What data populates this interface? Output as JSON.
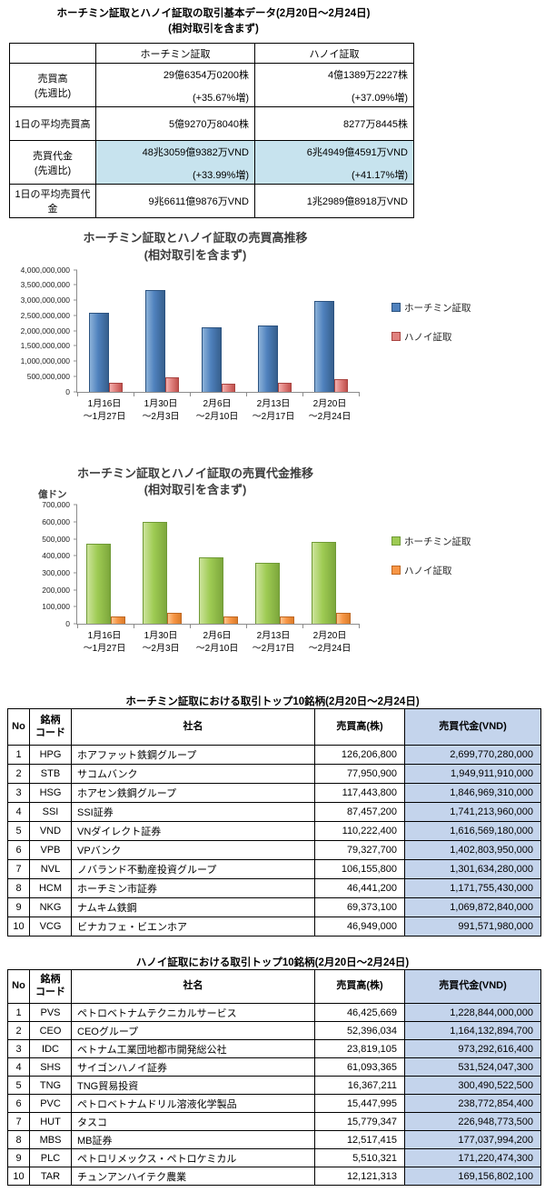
{
  "page": {
    "title": "ホーチミン証取とハノイ証取の取引基本データ(2月20日～2月24日)",
    "subtitle": "(相対取引を含まず)"
  },
  "colors": {
    "summary_highlight": "#c7e3ee",
    "column_highlight": "#c4d4ec",
    "hcm_blue": "#4f81bd",
    "hanoi_pink": "#e0817e",
    "hcm_green": "#9ecb53",
    "hanoi_orange": "#f79646"
  },
  "summary_table": {
    "col_headers": [
      "ホーチミン証取",
      "ハノイ証取"
    ],
    "rows": [
      {
        "label1": "売買高",
        "label2": "(先週比)",
        "hcm": "29億6354万0200株",
        "hcm_sub": "(+35.67%増)",
        "hanoi": "4億1389万2227株",
        "hanoi_sub": "(+37.09%増)"
      },
      {
        "label1": "1日の平均売買高",
        "label2": "",
        "hcm": "5億9270万8040株",
        "hanoi": "8277万8445株"
      },
      {
        "label1": "売買代金",
        "label2": "(先週比)",
        "hcm": "48兆3059億9382万VND",
        "hcm_sub": "(+33.99%増)",
        "hanoi": "6兆4949億4591万VND",
        "hanoi_sub": "(+41.17%増)"
      },
      {
        "label1": "1日の平均売買代金",
        "label2": "",
        "hcm": "9兆6611億9876万VND",
        "hanoi": "1兆2989億8918万VND"
      }
    ]
  },
  "chart_data": [
    {
      "type": "bar",
      "title": "ホーチミン証取とハノイ証取の売買高推移",
      "subtitle": "(相対取引を含まず)",
      "xlabel": "",
      "ylabel": "",
      "ylim": [
        0,
        4000000000
      ],
      "ytick": 500000000,
      "grid": false,
      "legend_position": "right",
      "categories": [
        [
          "1月16日",
          "～1月27日"
        ],
        [
          "1月30日",
          "～2月3日"
        ],
        [
          "2月6日",
          "～2月10日"
        ],
        [
          "2月13日",
          "～2月17日"
        ],
        [
          "2月20日",
          "～2月24日"
        ]
      ],
      "series": [
        {
          "name": "ホーチミン証取",
          "color": "#4f81bd",
          "color_light": "#8cb2d9",
          "color_dark": "#365f8d",
          "border": "#2c5380",
          "values": [
            2575000000,
            3330000000,
            2120000000,
            2184000000,
            2963540200
          ]
        },
        {
          "name": "ハノイ証取",
          "color": "#e0817e",
          "color_light": "#f3b0ae",
          "color_dark": "#c0504d",
          "border": "#a94441",
          "values": [
            300000000,
            465000000,
            270000000,
            302000000,
            413892227
          ]
        }
      ]
    },
    {
      "type": "bar",
      "title": "ホーチミン証取とハノイ証取の売買代金推移",
      "subtitle": "(相対取引を含まず)",
      "xlabel": "",
      "ylabel": "億ドン",
      "ylim": [
        0,
        700000
      ],
      "ytick": 100000,
      "grid": false,
      "legend_position": "right",
      "categories": [
        [
          "1月16日",
          "～1月27日"
        ],
        [
          "1月30日",
          "～2月3日"
        ],
        [
          "2月6日",
          "～2月10日"
        ],
        [
          "2月13日",
          "～2月17日"
        ],
        [
          "2月20日",
          "～2月24日"
        ]
      ],
      "series": [
        {
          "name": "ホーチミン証取",
          "color": "#9ecb53",
          "color_light": "#cce39b",
          "color_dark": "#7da73c",
          "border": "#6f9a36",
          "values": [
            473000,
            597000,
            388000,
            360500,
            483060
          ]
        },
        {
          "name": "ハノイ証取",
          "color": "#f79646",
          "color_light": "#fcc690",
          "color_dark": "#db7c2a",
          "border": "#bf6721",
          "values": [
            45000,
            66000,
            42000,
            46000,
            64949
          ]
        }
      ]
    }
  ],
  "hcm_top10": {
    "caption": "ホーチミン証取における取引トップ10銘柄(2月20日～2月24日)",
    "headers": {
      "no": "No",
      "code1": "銘柄",
      "code2": "コード",
      "name": "社名",
      "volume": "売買高(株)",
      "value": "売買代金(VND)"
    },
    "rows": [
      {
        "no": "1",
        "code": "HPG",
        "name": "ホアファット鉄鋼グループ",
        "volume": "126,206,800",
        "value": "2,699,770,280,000"
      },
      {
        "no": "2",
        "code": "STB",
        "name": "サコムバンク",
        "volume": "77,950,900",
        "value": "1,949,911,910,000"
      },
      {
        "no": "3",
        "code": "HSG",
        "name": "ホアセン鉄鋼グループ",
        "volume": "117,443,800",
        "value": "1,846,969,310,000"
      },
      {
        "no": "4",
        "code": "SSI",
        "name": "SSI証券",
        "volume": "87,457,200",
        "value": "1,741,213,960,000"
      },
      {
        "no": "5",
        "code": "VND",
        "name": "VNダイレクト証券",
        "volume": "110,222,400",
        "value": "1,616,569,180,000"
      },
      {
        "no": "6",
        "code": "VPB",
        "name": "VPバンク",
        "volume": "79,327,700",
        "value": "1,402,803,950,000"
      },
      {
        "no": "7",
        "code": "NVL",
        "name": "ノバランド不動産投資グループ",
        "volume": "106,155,800",
        "value": "1,301,634,280,000"
      },
      {
        "no": "8",
        "code": "HCM",
        "name": "ホーチミン市証券",
        "volume": "46,441,200",
        "value": "1,171,755,430,000"
      },
      {
        "no": "9",
        "code": "NKG",
        "name": "ナムキム鉄鋼",
        "volume": "69,373,100",
        "value": "1,069,872,840,000"
      },
      {
        "no": "10",
        "code": "VCG",
        "name": "ビナカフェ・ビエンホア",
        "volume": "46,949,000",
        "value": "991,571,980,000"
      }
    ]
  },
  "hanoi_top10": {
    "caption": "ハノイ証取における取引トップ10銘柄(2月20日～2月24日)",
    "headers": {
      "no": "No",
      "code1": "銘柄",
      "code2": "コード",
      "name": "社名",
      "volume": "売買高(株)",
      "value": "売買代金(VND)"
    },
    "rows": [
      {
        "no": "1",
        "code": "PVS",
        "name": "ペトロベトナムテクニカルサービス",
        "volume": "46,425,669",
        "value": "1,228,844,000,000"
      },
      {
        "no": "2",
        "code": "CEO",
        "name": "CEOグループ",
        "volume": "52,396,034",
        "value": "1,164,132,894,700"
      },
      {
        "no": "3",
        "code": "IDC",
        "name": "ベトナム工業団地都市開発総公社",
        "volume": "23,819,105",
        "value": "973,292,616,400"
      },
      {
        "no": "4",
        "code": "SHS",
        "name": "サイゴンハノイ証券",
        "volume": "61,093,365",
        "value": "531,524,047,300"
      },
      {
        "no": "5",
        "code": "TNG",
        "name": "TNG貿易投資",
        "volume": "16,367,211",
        "value": "300,490,522,500"
      },
      {
        "no": "6",
        "code": "PVC",
        "name": "ペトロベトナムドリル溶液化学製品",
        "volume": "15,447,995",
        "value": "238,772,854,400"
      },
      {
        "no": "7",
        "code": "HUT",
        "name": "タスコ",
        "volume": "15,779,347",
        "value": "226,948,773,500"
      },
      {
        "no": "8",
        "code": "MBS",
        "name": "MB証券",
        "volume": "12,517,415",
        "value": "177,037,994,200"
      },
      {
        "no": "9",
        "code": "PLC",
        "name": "ペトロリメックス・ペトロケミカル",
        "volume": "5,510,321",
        "value": "171,220,474,300"
      },
      {
        "no": "10",
        "code": "TAR",
        "name": "チュンアンハイテク農業",
        "volume": "12,121,313",
        "value": "169,156,802,100"
      }
    ]
  }
}
